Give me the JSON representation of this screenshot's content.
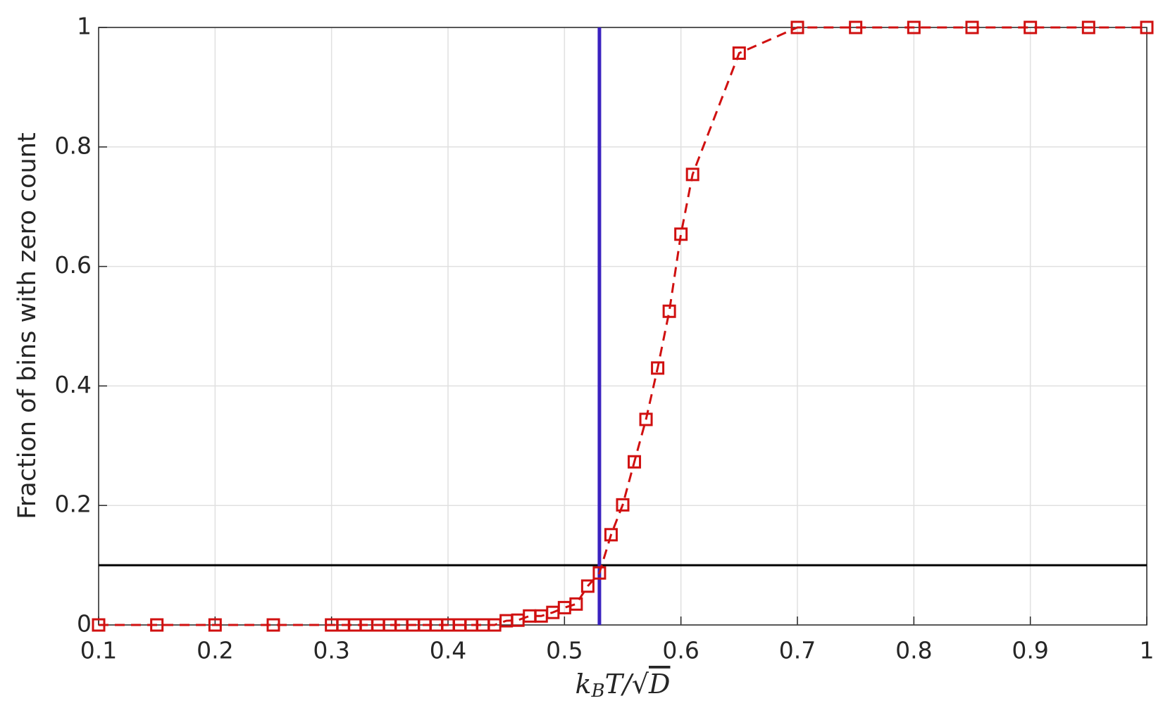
{
  "chart_data": {
    "type": "line",
    "ylabel": "Fraction of bins with zero count",
    "xlabel": [
      "k",
      "B",
      "T/",
      "√",
      "D"
    ],
    "x": [
      0.1,
      0.15,
      0.2,
      0.25,
      0.3,
      0.31,
      0.32,
      0.33,
      0.34,
      0.35,
      0.36,
      0.37,
      0.38,
      0.39,
      0.4,
      0.41,
      0.42,
      0.43,
      0.44,
      0.45,
      0.46,
      0.47,
      0.48,
      0.49,
      0.5,
      0.51,
      0.52,
      0.53,
      0.54,
      0.55,
      0.56,
      0.57,
      0.58,
      0.59,
      0.6,
      0.61,
      0.65,
      0.7,
      0.75,
      0.8,
      0.85,
      0.9,
      0.95,
      1
    ],
    "series": [
      {
        "color": "#d01010",
        "values": [
          0,
          0,
          0,
          0,
          0,
          0,
          0,
          0,
          0,
          0,
          0,
          0,
          0,
          0,
          0,
          0,
          0,
          0,
          0,
          0.007,
          0.008,
          0.015,
          0.015,
          0.021,
          0.029,
          0.035,
          0.065,
          0.087,
          0.151,
          0.201,
          0.273,
          0.344,
          0.43,
          0.525,
          0.654,
          0.754,
          0.957,
          1,
          1,
          1,
          1,
          1,
          1,
          1
        ]
      }
    ],
    "hline": {
      "value": 0.1,
      "color": "#000000"
    },
    "vline": {
      "value": 0.53,
      "color": "#3a22c0"
    },
    "xlim": [
      0.1,
      1
    ],
    "ylim": [
      0,
      1
    ],
    "xticks": [
      0.1,
      0.2,
      0.3,
      0.4,
      0.5,
      0.6,
      0.7,
      0.8,
      0.9,
      1
    ],
    "yticks": [
      0,
      0.2,
      0.4,
      0.6,
      0.8,
      1
    ],
    "grid": true
  }
}
